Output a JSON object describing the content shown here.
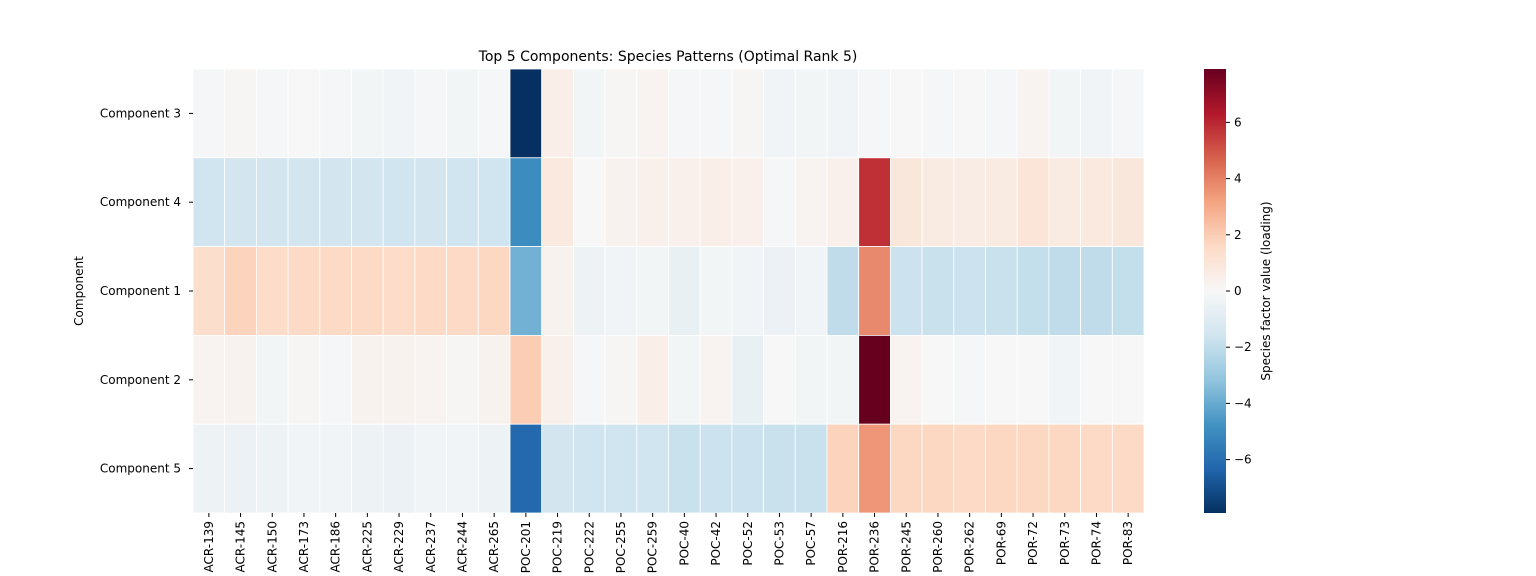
{
  "chart_data": {
    "type": "heatmap",
    "title": "Top 5 Components: Species Patterns (Optimal Rank 5)",
    "ylabel": "Component",
    "xlabel": "",
    "colorbar_label": "Species factor value (loading)",
    "colormap": "RdBu_r",
    "vlim": [
      -7.9,
      7.9
    ],
    "colorbar_ticks": [
      -6,
      -4,
      -2,
      0,
      2,
      4,
      6
    ],
    "rows": [
      "Component 3",
      "Component 4",
      "Component 1",
      "Component 2",
      "Component 5"
    ],
    "columns": [
      "ACR-139",
      "ACR-145",
      "ACR-150",
      "ACR-173",
      "ACR-186",
      "ACR-225",
      "ACR-229",
      "ACR-237",
      "ACR-244",
      "ACR-265",
      "POC-201",
      "POC-219",
      "POC-222",
      "POC-255",
      "POC-259",
      "POC-40",
      "POC-42",
      "POC-52",
      "POC-53",
      "POC-57",
      "POR-216",
      "POR-236",
      "POR-245",
      "POR-260",
      "POR-262",
      "POR-69",
      "POR-72",
      "POR-73",
      "POR-74",
      "POR-83"
    ],
    "values": [
      [
        -0.1,
        0.1,
        -0.1,
        0.0,
        -0.1,
        -0.2,
        -0.3,
        -0.1,
        -0.2,
        -0.1,
        -7.9,
        0.5,
        -0.2,
        0.1,
        0.2,
        -0.1,
        -0.1,
        0.1,
        -0.3,
        -0.2,
        -0.3,
        -0.1,
        0.0,
        -0.1,
        0.0,
        -0.1,
        0.2,
        -0.2,
        -0.3,
        -0.1
      ],
      [
        -1.6,
        -1.5,
        -1.5,
        -1.5,
        -1.5,
        -1.5,
        -1.6,
        -1.5,
        -1.6,
        -1.6,
        -5.0,
        0.8,
        0.0,
        0.3,
        0.4,
        0.4,
        0.5,
        0.4,
        -0.1,
        0.2,
        0.4,
        5.8,
        0.9,
        0.7,
        0.6,
        0.7,
        1.0,
        0.7,
        0.8,
        0.9
      ],
      [
        1.4,
        1.8,
        1.5,
        1.6,
        1.6,
        1.6,
        1.5,
        1.6,
        1.6,
        1.7,
        -3.8,
        0.3,
        -0.4,
        -0.3,
        -0.2,
        -0.6,
        -0.2,
        -0.3,
        -0.5,
        -0.3,
        -2.0,
        3.8,
        -1.7,
        -1.8,
        -1.7,
        -1.8,
        -1.9,
        -2.0,
        -2.0,
        -1.9
      ],
      [
        0.2,
        0.3,
        -0.2,
        0.1,
        -0.1,
        0.3,
        0.3,
        0.2,
        0.1,
        0.3,
        2.0,
        0.4,
        -0.1,
        0.1,
        0.5,
        -0.2,
        0.2,
        -0.6,
        0.0,
        -0.2,
        -0.2,
        7.9,
        0.2,
        0.0,
        -0.1,
        0.0,
        0.0,
        -0.3,
        0.0,
        0.0
      ],
      [
        -0.4,
        -0.5,
        -0.4,
        -0.3,
        -0.3,
        -0.4,
        -0.5,
        -0.3,
        -0.3,
        -0.4,
        -6.2,
        -1.5,
        -1.6,
        -1.6,
        -1.6,
        -1.8,
        -1.7,
        -1.7,
        -1.8,
        -1.8,
        1.8,
        3.5,
        1.7,
        1.7,
        1.6,
        1.7,
        1.7,
        1.7,
        1.6,
        1.6
      ]
    ]
  }
}
